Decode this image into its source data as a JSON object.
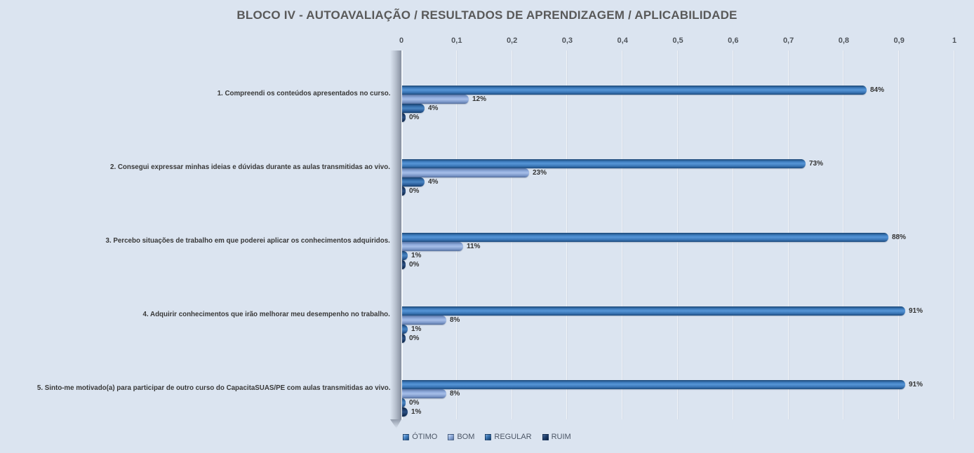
{
  "chart_data": {
    "type": "bar",
    "orientation": "horizontal",
    "title": "BLOCO IV - AUTOAVALIAÇÃO / RESULTADOS DE APRENDIZAGEM / APLICABILIDADE",
    "categories": [
      "1. Compreendi os conteúdos apresentados no curso.",
      "2. Consegui expressar minhas ideias e dúvidas durante as aulas transmitidas ao vivo.",
      "3. Percebo situações de trabalho em que poderei aplicar os conhecimentos adquiridos.",
      "4. Adquirir conhecimentos que irão melhorar meu desempenho no trabalho.",
      "5. Sinto-me motivado(a) para participar de outro curso do CapacitaSUAS/PE com aulas transmitidas ao vivo."
    ],
    "series": [
      {
        "name": "ÓTIMO",
        "color": "#4080c4",
        "values": [
          0.84,
          0.73,
          0.88,
          0.91,
          0.91
        ],
        "labels": [
          "84%",
          "73%",
          "88%",
          "91%",
          "91%"
        ]
      },
      {
        "name": "BOM",
        "color": "#93afdf",
        "values": [
          0.12,
          0.23,
          0.11,
          0.08,
          0.08
        ],
        "labels": [
          "12%",
          "23%",
          "11%",
          "8%",
          "8%"
        ]
      },
      {
        "name": "REGULAR",
        "color": "#3c77b4",
        "values": [
          0.04,
          0.04,
          0.01,
          0.01,
          0.0
        ],
        "labels": [
          "4%",
          "4%",
          "1%",
          "1%",
          "0%"
        ]
      },
      {
        "name": "RUIM",
        "color": "#1f3f6b",
        "values": [
          0.0,
          0.0,
          0.0,
          0.0,
          0.01
        ],
        "labels": [
          "0%",
          "0%",
          "0%",
          "0%",
          "1%"
        ]
      }
    ],
    "x_ticks": [
      "0",
      "0,1",
      "0,2",
      "0,3",
      "0,4",
      "0,5",
      "0,6",
      "0,7",
      "0,8",
      "0,9",
      "1"
    ],
    "xlim": [
      0,
      1
    ],
    "grid": true,
    "legend_position": "bottom",
    "background_color": "#dbe4f0",
    "title_color": "#595959"
  }
}
